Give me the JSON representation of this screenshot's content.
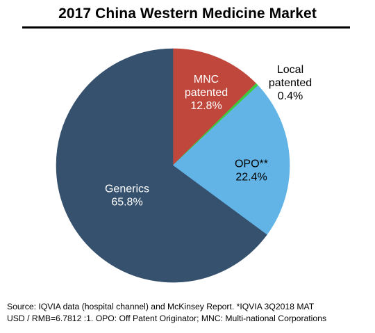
{
  "chart_data": {
    "type": "pie",
    "title": "2017 China Western Medicine Market",
    "slices": [
      {
        "name": "MNC patented",
        "label_lines": [
          "MNC",
          "patented",
          "12.8%"
        ],
        "value": 12.8,
        "color": "#C0473C",
        "label_color": "#ffffff"
      },
      {
        "name": "Local patented",
        "label_lines": [
          "Local",
          "patented",
          "0.4%"
        ],
        "value": 0.4,
        "color": "#3FCB3F",
        "label_color": "#000000",
        "label_outside": true
      },
      {
        "name": "OPO**",
        "label_lines": [
          "OPO**",
          "22.4%"
        ],
        "value": 22.4,
        "color": "#62B4E6",
        "label_color": "#000000"
      },
      {
        "name": "Generics",
        "label_lines": [
          "Generics",
          "65.8%"
        ],
        "value": 65.8,
        "color": "#36516D",
        "label_color": "#ffffff"
      }
    ],
    "start_angle_deg": 0,
    "direction": "clockwise"
  },
  "footnote": {
    "line1": "Source: IQVIA data (hospital channel) and McKinsey Report. *IQVIA 3Q2018 MAT",
    "line2": "USD / RMB=6.7812 :1. OPO: Off Patent Originator; MNC: Multi-national Corporations"
  }
}
